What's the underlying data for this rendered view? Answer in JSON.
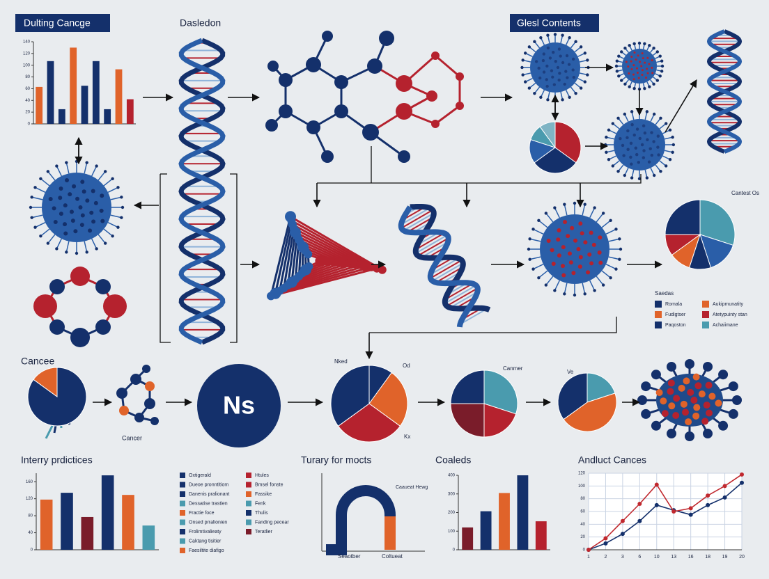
{
  "labels": {
    "dna_title": "Dasledon",
    "contents": "Glesl Contents",
    "ns": "Ns",
    "cancer": "Cancer",
    "pie_d_label": "Nked",
    "pie_d_label2": "Od",
    "pie_d_label3": "Kx",
    "pie_e_label": "Canmer",
    "pie_f_label": "Ve",
    "pie_b_label": "Cantest Os",
    "arch_title": "Turary for mocts",
    "arch_left": "Seaotber",
    "arch_right": "Coltueat",
    "arch_note": "Caaueat Hewg"
  },
  "charts": [
    {
      "type": "bar",
      "title": "Dulting Cancge",
      "values": [
        63,
        107,
        25,
        130,
        65,
        107,
        25,
        93,
        42
      ],
      "colors": [
        "#e0632a",
        "#14306b",
        "#14306b",
        "#e0632a",
        "#14306b",
        "#14306b",
        "#14306b",
        "#e0632a",
        "#b5222e"
      ],
      "ylim": [
        0,
        140
      ],
      "yticks": [
        0,
        20,
        40,
        60,
        80,
        100,
        120,
        140
      ]
    },
    {
      "type": "pie",
      "values": [
        35,
        30,
        15,
        10,
        10
      ],
      "colors": [
        "#b5222e",
        "#14306b",
        "#2a5ea8",
        "#4a9bae",
        "#7fb4c4"
      ]
    },
    {
      "type": "pie",
      "values": [
        30,
        15,
        10,
        10,
        10,
        25
      ],
      "colors": [
        "#4a9bae",
        "#2a5ea8",
        "#14306b",
        "#e0632a",
        "#b5222e",
        "#14306b"
      ]
    },
    {
      "type": "pie",
      "title": "Cancee",
      "values": [
        85,
        15
      ],
      "colors": [
        "#14306b",
        "#e0632a"
      ]
    },
    {
      "type": "pie",
      "values": [
        10,
        25,
        30,
        35
      ],
      "colors": [
        "#14306b",
        "#e0632a",
        "#b5222e",
        "#14306b"
      ]
    },
    {
      "type": "pie",
      "values": [
        30,
        20,
        25,
        25
      ],
      "colors": [
        "#4a9bae",
        "#b5222e",
        "#7a1c2a",
        "#14306b"
      ]
    },
    {
      "type": "pie",
      "values": [
        20,
        45,
        35
      ],
      "colors": [
        "#4a9bae",
        "#e0632a",
        "#14306b"
      ]
    },
    {
      "type": "bar",
      "title": "Interry prdictices",
      "values": [
        118,
        134,
        77,
        175,
        129,
        57
      ],
      "colors": [
        "#e0632a",
        "#14306b",
        "#7a1c2a",
        "#14306b",
        "#e0632a",
        "#4a9bae"
      ],
      "ylim": [
        0,
        180
      ],
      "yticks": [
        0,
        40,
        80,
        120,
        160
      ]
    },
    {
      "type": "bar",
      "title": "Coaleds",
      "values": [
        120,
        207,
        305,
        400,
        153
      ],
      "colors": [
        "#7a1c2a",
        "#14306b",
        "#e0632a",
        "#14306b",
        "#b5222e"
      ],
      "ylim": [
        0,
        400
      ],
      "yticks": [
        0,
        100,
        200,
        300,
        400
      ]
    },
    {
      "type": "line",
      "title": "Andluct Cances",
      "categories": [
        "1",
        "2",
        "3",
        "6",
        "10",
        "13",
        "16",
        "18",
        "19",
        "20"
      ],
      "ylim": [
        0,
        120
      ],
      "yticks": [
        0,
        20,
        40,
        60,
        80,
        100,
        120
      ],
      "series": [
        {
          "name": "Navy",
          "color": "#14306b",
          "values": [
            0,
            10,
            25,
            45,
            70,
            62,
            55,
            70,
            82,
            105
          ]
        },
        {
          "name": "Red",
          "color": "#c0282e",
          "values": [
            0,
            18,
            45,
            72,
            102,
            60,
            65,
            85,
            100,
            118
          ]
        }
      ]
    }
  ],
  "legend_right": {
    "title": "Saedas",
    "items": [
      {
        "name": "Romala",
        "color": "#14306b"
      },
      {
        "name": "Aukipmunatity",
        "color": "#e0632a"
      },
      {
        "name": "Fudigtser",
        "color": "#e0632a"
      },
      {
        "name": "Atetypuinty stan",
        "color": "#b5222e"
      },
      {
        "name": "Paqoston",
        "color": "#14306b"
      },
      {
        "name": "Achaiimane",
        "color": "#4a9bae"
      }
    ]
  },
  "legend_bottom": {
    "items": [
      {
        "name": "Oxtigerald",
        "color": "#14306b"
      },
      {
        "name": "Dueoe pronntitiom",
        "color": "#14306b"
      },
      {
        "name": "Danenis pralionant",
        "color": "#14306b"
      },
      {
        "name": "Dessatise trastien",
        "color": "#4a9bae"
      },
      {
        "name": "Fractie foce",
        "color": "#e0632a"
      },
      {
        "name": "Onsed prralionien",
        "color": "#4a9bae"
      },
      {
        "name": "Frolimtivalieaty",
        "color": "#14306b"
      },
      {
        "name": "Caktang tisitier",
        "color": "#4a9bae"
      },
      {
        "name": "Faesiltite diafigo",
        "color": "#e0632a"
      },
      {
        "name": "Htules",
        "color": "#b5222e"
      },
      {
        "name": "Bmsel fonste",
        "color": "#b5222e"
      },
      {
        "name": "Fassike",
        "color": "#e0632a"
      },
      {
        "name": "Fenk",
        "color": "#4a9bae"
      },
      {
        "name": "Thulis",
        "color": "#14306b"
      },
      {
        "name": "Fanding pecear",
        "color": "#4a9bae"
      },
      {
        "name": "Teratlier",
        "color": "#7a1c2a"
      }
    ]
  }
}
